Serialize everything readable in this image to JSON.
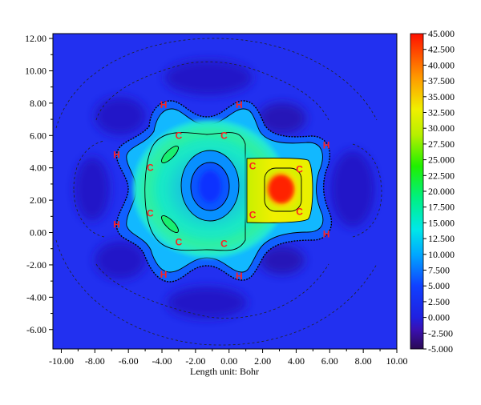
{
  "chart_data": {
    "type": "heatmap",
    "title": "",
    "xlabel": "Length unit: Bohr",
    "ylabel": "",
    "xlim": [
      -10.5,
      10.0
    ],
    "ylim": [
      -7.2,
      12.3
    ],
    "x_ticks": [
      -10,
      -8,
      -6,
      -4,
      -2,
      0,
      2,
      4,
      6,
      8,
      10
    ],
    "x_tick_labels": [
      "-10.00",
      "-8.00",
      "-6.00",
      "-4.00",
      "-2.00",
      "0.00",
      "2.00",
      "4.00",
      "6.00",
      "8.00",
      "10.00"
    ],
    "y_ticks": [
      -6,
      -4,
      -2,
      0,
      2,
      4,
      6,
      8,
      10,
      12
    ],
    "y_tick_labels": [
      "-6.00",
      "-4.00",
      "-2.00",
      "0.00",
      "2.00",
      "4.00",
      "6.00",
      "8.00",
      "10.00",
      "12.00"
    ],
    "colorbar": {
      "min": -5.0,
      "max": 45.0,
      "ticks": [
        45,
        42.5,
        40,
        37.5,
        35,
        32.5,
        30,
        27.5,
        25,
        22.5,
        20,
        17.5,
        15,
        12.5,
        10,
        7.5,
        5,
        2.5,
        0,
        -2.5,
        -5
      ],
      "tick_labels": [
        "45.000",
        "42.500",
        "40.000",
        "37.500",
        "35.000",
        "32.500",
        "30.000",
        "27.500",
        "25.000",
        "22.500",
        "20.000",
        "17.500",
        "15.000",
        "12.500",
        "10.000",
        "7.500",
        "5.000",
        "2.500",
        "0.000",
        "-2.500",
        "-5.000"
      ]
    },
    "atoms": [
      {
        "label": "H",
        "x": -3.9,
        "y": 7.9,
        "color": "#ff2020"
      },
      {
        "label": "H",
        "x": 0.6,
        "y": 7.9,
        "color": "#ff2020"
      },
      {
        "label": "H",
        "x": -6.7,
        "y": 4.8,
        "color": "#ff2020"
      },
      {
        "label": "H",
        "x": -6.7,
        "y": 0.5,
        "color": "#ff2020"
      },
      {
        "label": "H",
        "x": 5.8,
        "y": 5.4,
        "color": "#ff2020"
      },
      {
        "label": "H",
        "x": 5.8,
        "y": -0.1,
        "color": "#ff2020"
      },
      {
        "label": "H",
        "x": -3.9,
        "y": -2.6,
        "color": "#ff2020"
      },
      {
        "label": "H",
        "x": 0.6,
        "y": -2.7,
        "color": "#ff2020"
      },
      {
        "label": "C",
        "x": -3.0,
        "y": 6.0,
        "color": "#ff2020"
      },
      {
        "label": "C",
        "x": -0.3,
        "y": 6.0,
        "color": "#ff2020"
      },
      {
        "label": "C",
        "x": -4.7,
        "y": 4.0,
        "color": "#ff2020"
      },
      {
        "label": "C",
        "x": 1.4,
        "y": 4.1,
        "color": "#ff2020"
      },
      {
        "label": "C",
        "x": 4.2,
        "y": 3.9,
        "color": "#ff2020"
      },
      {
        "label": "C",
        "x": -4.7,
        "y": 1.2,
        "color": "#ff2020"
      },
      {
        "label": "C",
        "x": 1.4,
        "y": 1.1,
        "color": "#ff2020"
      },
      {
        "label": "C",
        "x": 4.2,
        "y": 1.3,
        "color": "#ff2020"
      },
      {
        "label": "C",
        "x": -3.0,
        "y": -0.6,
        "color": "#ff2020"
      },
      {
        "label": "C",
        "x": -0.3,
        "y": -0.7,
        "color": "#ff2020"
      }
    ]
  }
}
